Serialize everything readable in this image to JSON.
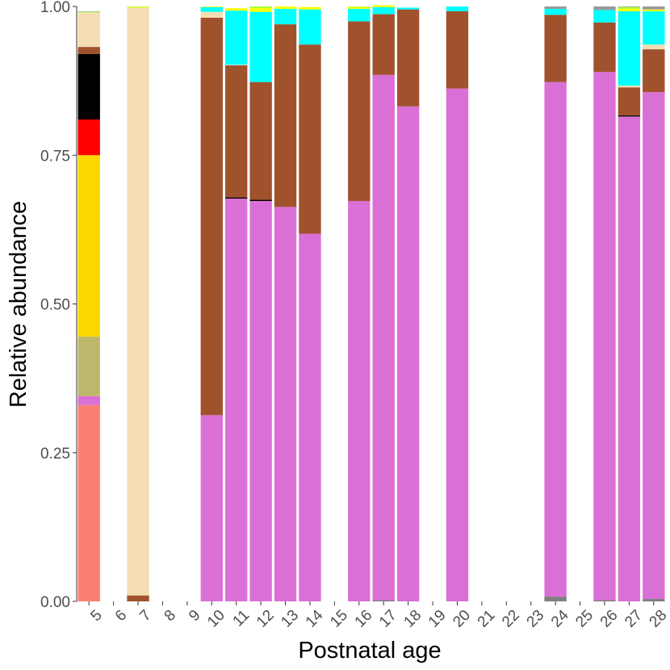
{
  "chart_data": {
    "type": "bar",
    "stacked": true,
    "title": "",
    "xlabel": "Postnatal age",
    "ylabel": "Relative abundance",
    "ylim": [
      0,
      1
    ],
    "yticks": [
      "0.00",
      "0.25",
      "0.50",
      "0.75",
      "1.00"
    ],
    "categories": [
      "5",
      "6",
      "7",
      "8",
      "9",
      "10",
      "11",
      "12",
      "13",
      "14",
      "15",
      "16",
      "17",
      "18",
      "19",
      "20",
      "21",
      "22",
      "23",
      "24",
      "25",
      "26",
      "27",
      "28"
    ],
    "series": [
      {
        "name": "grey",
        "color": "#7f7f7f",
        "values": [
          0,
          0,
          0,
          0,
          0,
          0,
          0,
          0,
          0,
          0,
          0,
          0,
          0.002,
          0,
          0,
          0,
          0,
          0,
          0,
          0.008,
          0,
          0.002,
          0,
          0.004
        ]
      },
      {
        "name": "sienna",
        "color": "#a0522d",
        "values": [
          0,
          0,
          0.01,
          0,
          0,
          0,
          0,
          0,
          0,
          0,
          0,
          0,
          0,
          0,
          0,
          0,
          0,
          0,
          0,
          0,
          0,
          0,
          0,
          0
        ]
      },
      {
        "name": "salmon",
        "color": "#fa8072",
        "values": [
          0.33,
          0,
          0,
          0,
          0,
          0,
          0,
          0,
          0,
          0,
          0,
          0,
          0,
          0,
          0,
          0,
          0,
          0,
          0,
          0,
          0,
          0,
          0,
          0
        ]
      },
      {
        "name": "orchid",
        "color": "#da70d6",
        "values": [
          0.015,
          0,
          0,
          0,
          0,
          0.313,
          0.677,
          0.673,
          0.663,
          0.618,
          0,
          0.673,
          0.883,
          0.832,
          0,
          0.862,
          0,
          0,
          0,
          0.865,
          0,
          0.888,
          0.815,
          0.852
        ]
      },
      {
        "name": "khaki",
        "color": "#bdb76b",
        "values": [
          0.1,
          0,
          0,
          0,
          0,
          0,
          0,
          0,
          0,
          0,
          0,
          0,
          0,
          0,
          0,
          0,
          0,
          0,
          0,
          0,
          0,
          0,
          0,
          0
        ]
      },
      {
        "name": "gold",
        "color": "#ffd700",
        "values": [
          0.305,
          0,
          0,
          0,
          0,
          0,
          0,
          0,
          0,
          0,
          0,
          0,
          0,
          0,
          0,
          0,
          0,
          0,
          0,
          0,
          0,
          0,
          0,
          0
        ]
      },
      {
        "name": "red",
        "color": "#ff0000",
        "values": [
          0.06,
          0,
          0,
          0,
          0,
          0,
          0,
          0,
          0,
          0,
          0,
          0,
          0,
          0,
          0,
          0,
          0,
          0,
          0,
          0,
          0,
          0,
          0,
          0
        ]
      },
      {
        "name": "black",
        "color": "#000000",
        "values": [
          0.11,
          0,
          0,
          0,
          0,
          0,
          0.002,
          0.002,
          0,
          0,
          0,
          0,
          0,
          0,
          0,
          0,
          0,
          0,
          0,
          0,
          0,
          0,
          0.002,
          0
        ]
      },
      {
        "name": "brown",
        "color": "#a0522d",
        "values": [
          0.012,
          0,
          0,
          0,
          0,
          0.668,
          0.222,
          0.198,
          0.307,
          0.318,
          0,
          0.302,
          0.102,
          0.163,
          0,
          0.13,
          0,
          0,
          0,
          0.113,
          0,
          0.083,
          0.047,
          0.072
        ]
      },
      {
        "name": "wheat",
        "color": "#f5deb3",
        "values": [
          0.058,
          0,
          0.988,
          0,
          0,
          0.01,
          0.001,
          0,
          0,
          0,
          0,
          0,
          0,
          0,
          0,
          0,
          0,
          0,
          0,
          0,
          0,
          0,
          0.003,
          0.008
        ]
      },
      {
        "name": "cyan",
        "color": "#00ffff",
        "values": [
          0,
          0,
          0,
          0,
          0,
          0.008,
          0.091,
          0.118,
          0.026,
          0.059,
          0,
          0.021,
          0.012,
          0.003,
          0,
          0.008,
          0,
          0,
          0,
          0.01,
          0,
          0.021,
          0.125,
          0.056
        ]
      },
      {
        "name": "yellow",
        "color": "#ffff00",
        "values": [
          0,
          0,
          0.001,
          0,
          0,
          0.001,
          0.004,
          0.006,
          0.004,
          0.004,
          0,
          0.003,
          0.003,
          0,
          0,
          0,
          0,
          0,
          0,
          0,
          0,
          0,
          0.004,
          0.003
        ]
      },
      {
        "name": "greenyellow",
        "color": "#adff2f",
        "values": [
          0.001,
          0,
          0.001,
          0,
          0,
          0,
          0,
          0.003,
          0,
          0,
          0,
          0.001,
          0,
          0,
          0,
          0,
          0,
          0,
          0,
          0,
          0,
          0,
          0.003,
          0
        ]
      },
      {
        "name": "darkseagreen",
        "color": "#8fbc8f",
        "values": [
          0.001,
          0,
          0,
          0,
          0,
          0,
          0,
          0,
          0,
          0,
          0,
          0,
          0,
          0,
          0,
          0,
          0,
          0,
          0,
          0,
          0,
          0,
          0,
          0
        ]
      },
      {
        "name": "darkgrey",
        "color": "#999999",
        "values": [
          0,
          0,
          0,
          0,
          0,
          0,
          0,
          0,
          0,
          0,
          0,
          0,
          0,
          0,
          0,
          0,
          0,
          0,
          0,
          0.004,
          0,
          0.006,
          0.001,
          0.005
        ]
      }
    ]
  }
}
